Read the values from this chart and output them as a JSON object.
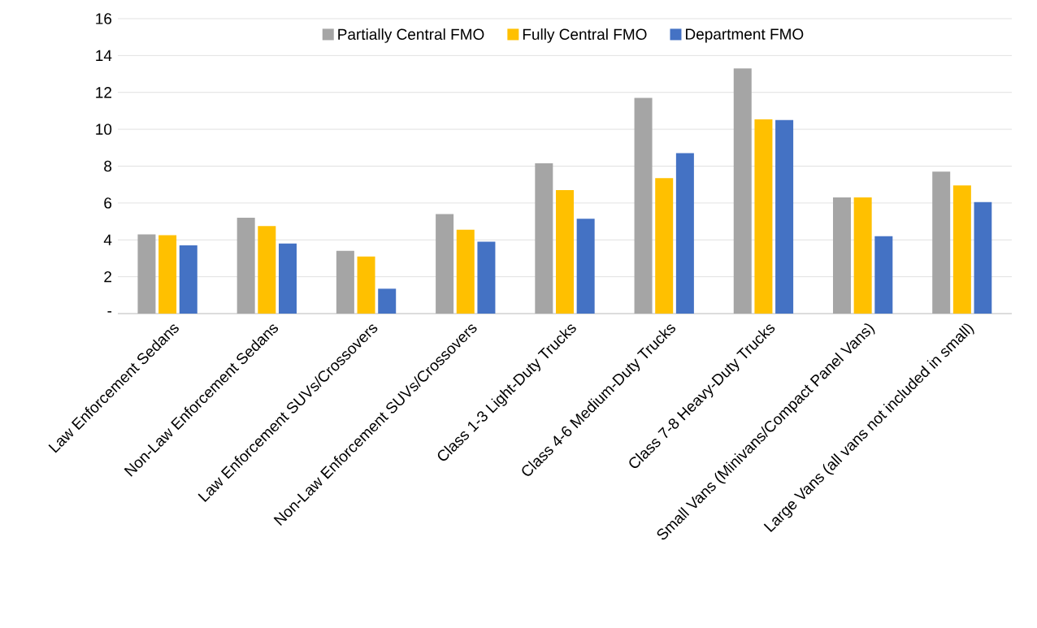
{
  "chart_data": {
    "type": "bar",
    "categories": [
      "Law Enforcement Sedans",
      "Non-Law Enforcement Sedans",
      "Law Enforcement SUVs/Crossovers",
      "Non-Law Enforcement SUVs/Crossovers",
      "Class 1-3 Light-Duty Trucks",
      "Class 4-6 Medium-Duty Trucks",
      "Class 7-8 Heavy-Duty Trucks",
      "Small Vans (Minivans/Compact Panel Vans)",
      "Large Vans (all vans not included in small)"
    ],
    "series": [
      {
        "name": "Partially Central FMO",
        "color": "#a5a5a5",
        "values": [
          4.3,
          5.2,
          3.4,
          5.4,
          8.15,
          11.7,
          13.3,
          6.3,
          7.7
        ]
      },
      {
        "name": "Fully Central FMO",
        "color": "#ffc000",
        "values": [
          4.25,
          4.75,
          3.1,
          4.55,
          6.7,
          7.35,
          10.55,
          6.3,
          6.95
        ]
      },
      {
        "name": "Department FMO",
        "color": "#4472c4",
        "values": [
          3.7,
          3.8,
          1.35,
          3.9,
          5.15,
          8.7,
          10.5,
          4.2,
          6.05
        ]
      }
    ],
    "ylim": [
      0,
      16
    ],
    "yticks": [
      {
        "value": 0,
        "label": "-"
      },
      2,
      4,
      6,
      8,
      10,
      12,
      14,
      16
    ],
    "grid": "y",
    "legend": "top"
  }
}
